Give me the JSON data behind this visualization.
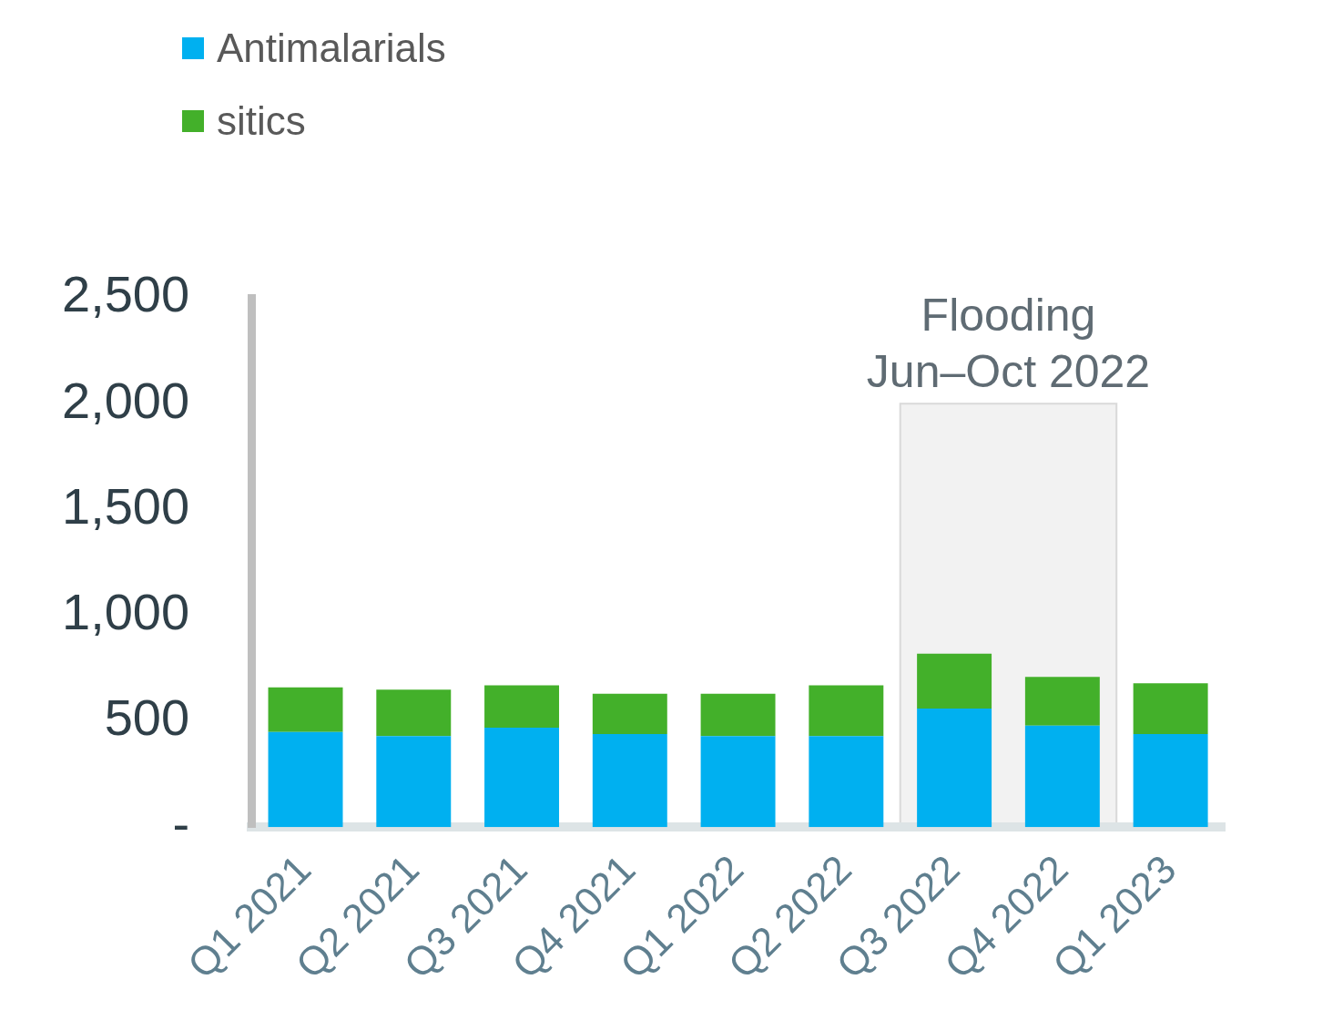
{
  "chart_data": {
    "type": "bar",
    "stacked": true,
    "categories": [
      "Q1 2021",
      "Q2 2021",
      "Q3 2021",
      "Q4 2021",
      "Q1 2022",
      "Q2 2022",
      "Q3 2022",
      "Q4 2022",
      "Q1 2023"
    ],
    "series": [
      {
        "name": "Antimalarials",
        "color": "#00b0f0",
        "values": [
          450,
          430,
          470,
          440,
          430,
          430,
          560,
          480,
          440
        ]
      },
      {
        "name": "sitics",
        "color": "#43b02a",
        "values": [
          210,
          220,
          200,
          190,
          200,
          240,
          260,
          230,
          240
        ]
      }
    ],
    "ylim": [
      0,
      2500
    ],
    "yticks": [
      {
        "value": 0,
        "label": "-"
      },
      {
        "value": 500,
        "label": "500"
      },
      {
        "value": 1000,
        "label": "1,000"
      },
      {
        "value": 1500,
        "label": "1,500"
      },
      {
        "value": 2000,
        "label": "2,000"
      },
      {
        "value": 2500,
        "label": "2,500"
      }
    ],
    "bands": [
      {
        "axis": "x",
        "from": "Q3 2022",
        "to": "Q4 2022",
        "label": "Flooding\nJun–Oct 2022",
        "color": "#f2f2f2"
      }
    ],
    "grid": false,
    "legend": "top left"
  }
}
